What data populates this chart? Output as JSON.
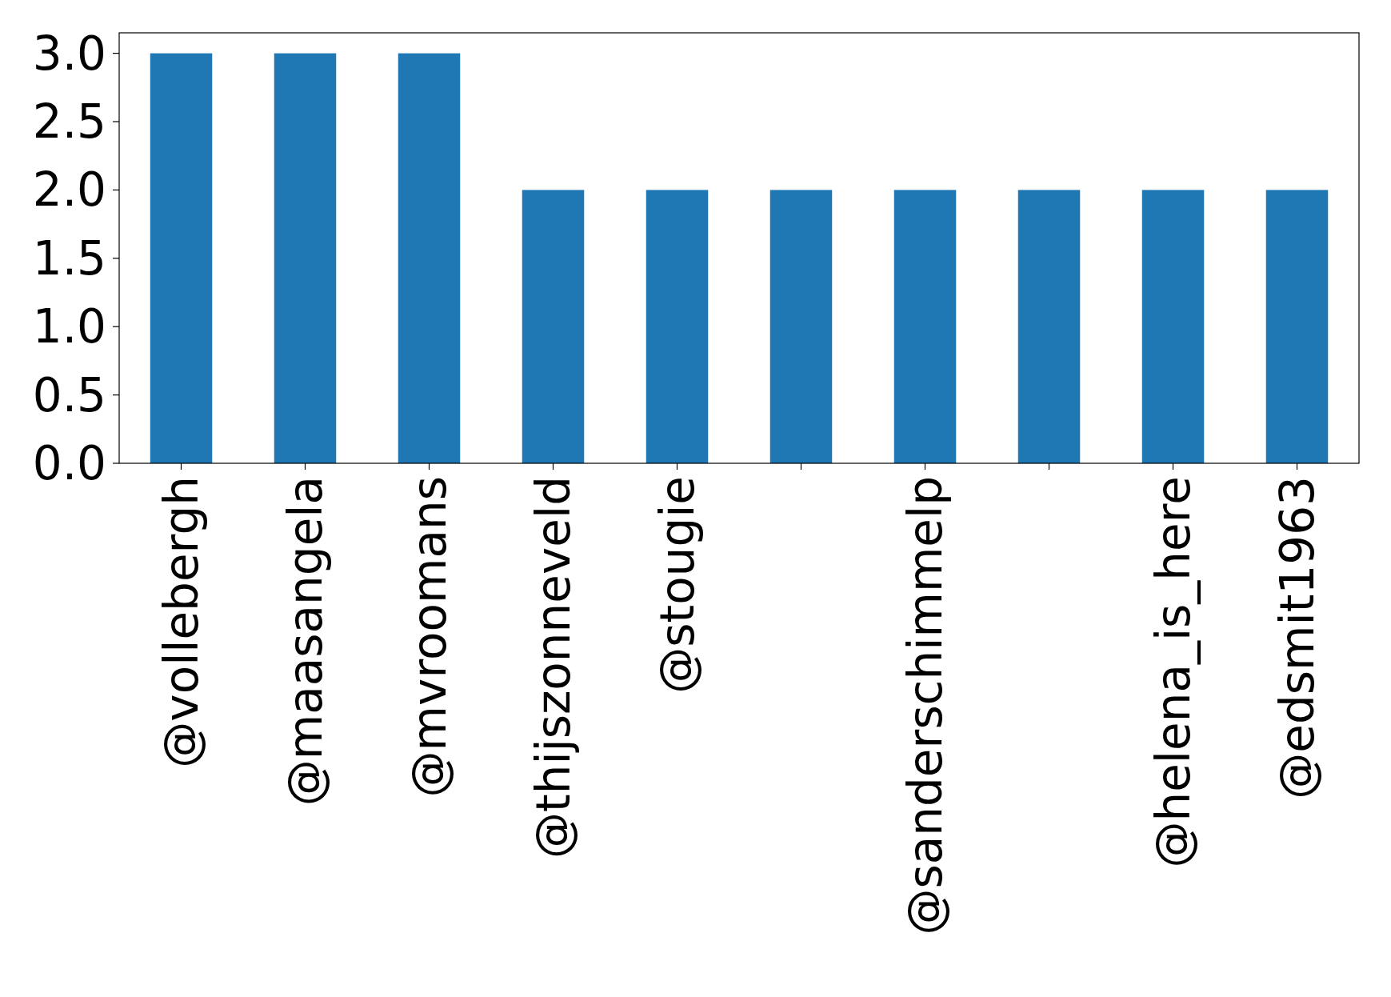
{
  "chart_data": {
    "type": "bar",
    "categories": [
      "@vollebergh",
      "@maasangela",
      "@mvroomans",
      "@thijszonneveld",
      "@stougie",
      null,
      "@sanderschimmelp",
      null,
      "@helena_is_here",
      "@edsmit1963"
    ],
    "values": [
      3,
      3,
      3,
      2,
      2,
      2,
      2,
      2,
      2,
      2
    ],
    "color": "#1f77b4",
    "ylim": [
      0,
      3.15
    ],
    "yticks": [
      {
        "value": 0,
        "label": "0.0"
      },
      {
        "value": 0.5,
        "label": "0.5"
      },
      {
        "value": 1,
        "label": "1.0"
      },
      {
        "value": 1.5,
        "label": "1.5"
      },
      {
        "value": 2,
        "label": "2.0"
      },
      {
        "value": 2.5,
        "label": "2.5"
      },
      {
        "value": 3,
        "label": "3.0"
      }
    ],
    "grid": false
  }
}
